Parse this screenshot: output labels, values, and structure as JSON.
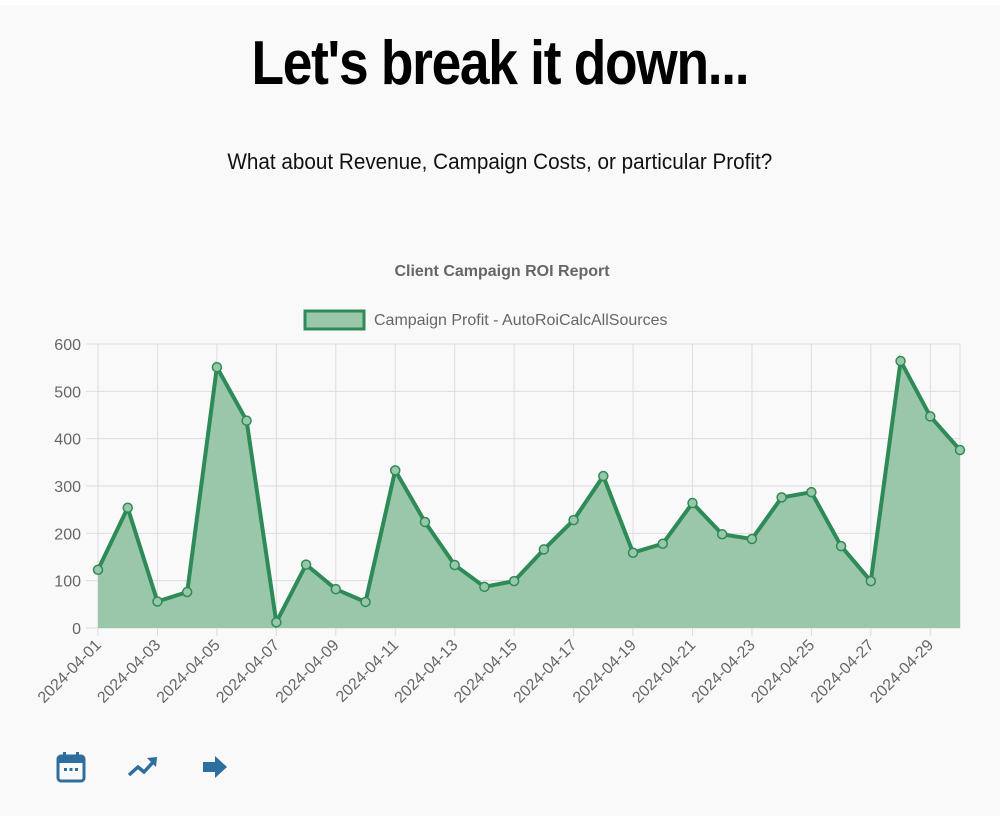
{
  "header": {
    "title": "Let's break it down...",
    "subtitle": "What about Revenue, Campaign Costs, or particular Profit?"
  },
  "colors": {
    "line": "#2e8b57",
    "fill": "#9ac6aa",
    "grid": "#dddddd",
    "text": "#666666",
    "icon": "#2d6e9e",
    "background": "#f9f9f9"
  },
  "toolbar": {
    "icons": [
      {
        "name": "calendar-icon",
        "label": "calendar"
      },
      {
        "name": "trending-up-icon",
        "label": "trend"
      },
      {
        "name": "arrow-right-icon",
        "label": "next"
      }
    ]
  },
  "chart_data": {
    "type": "area",
    "title": "Client Campaign ROI Report",
    "legend": [
      "Campaign Profit - AutoRoiCalcAllSources"
    ],
    "legend_position": "top",
    "xlabel": "",
    "ylabel": "",
    "ylim": [
      0,
      600
    ],
    "yticks": [
      0,
      100,
      200,
      300,
      400,
      500,
      600
    ],
    "grid": true,
    "x_tick_labels": [
      "2024-04-01",
      "2024-04-03",
      "2024-04-05",
      "2024-04-07",
      "2024-04-09",
      "2024-04-11",
      "2024-04-13",
      "2024-04-15",
      "2024-04-17",
      "2024-04-19",
      "2024-04-21",
      "2024-04-23",
      "2024-04-25",
      "2024-04-27",
      "2024-04-29"
    ],
    "x": [
      "2024-04-01",
      "2024-04-02",
      "2024-04-03",
      "2024-04-04",
      "2024-04-05",
      "2024-04-06",
      "2024-04-07",
      "2024-04-08",
      "2024-04-09",
      "2024-04-10",
      "2024-04-11",
      "2024-04-12",
      "2024-04-13",
      "2024-04-14",
      "2024-04-15",
      "2024-04-16",
      "2024-04-17",
      "2024-04-18",
      "2024-04-19",
      "2024-04-20",
      "2024-04-21",
      "2024-04-22",
      "2024-04-23",
      "2024-04-24",
      "2024-04-25",
      "2024-04-26",
      "2024-04-27",
      "2024-04-28",
      "2024-04-29",
      "2024-04-30"
    ],
    "series": [
      {
        "name": "Campaign Profit - AutoRoiCalcAllSources",
        "values": [
          123,
          254,
          56,
          76,
          551,
          438,
          12,
          134,
          82,
          55,
          333,
          224,
          133,
          87,
          99,
          166,
          228,
          321,
          159,
          178,
          264,
          198,
          188,
          276,
          287,
          173,
          99,
          564,
          447,
          376
        ]
      }
    ]
  }
}
